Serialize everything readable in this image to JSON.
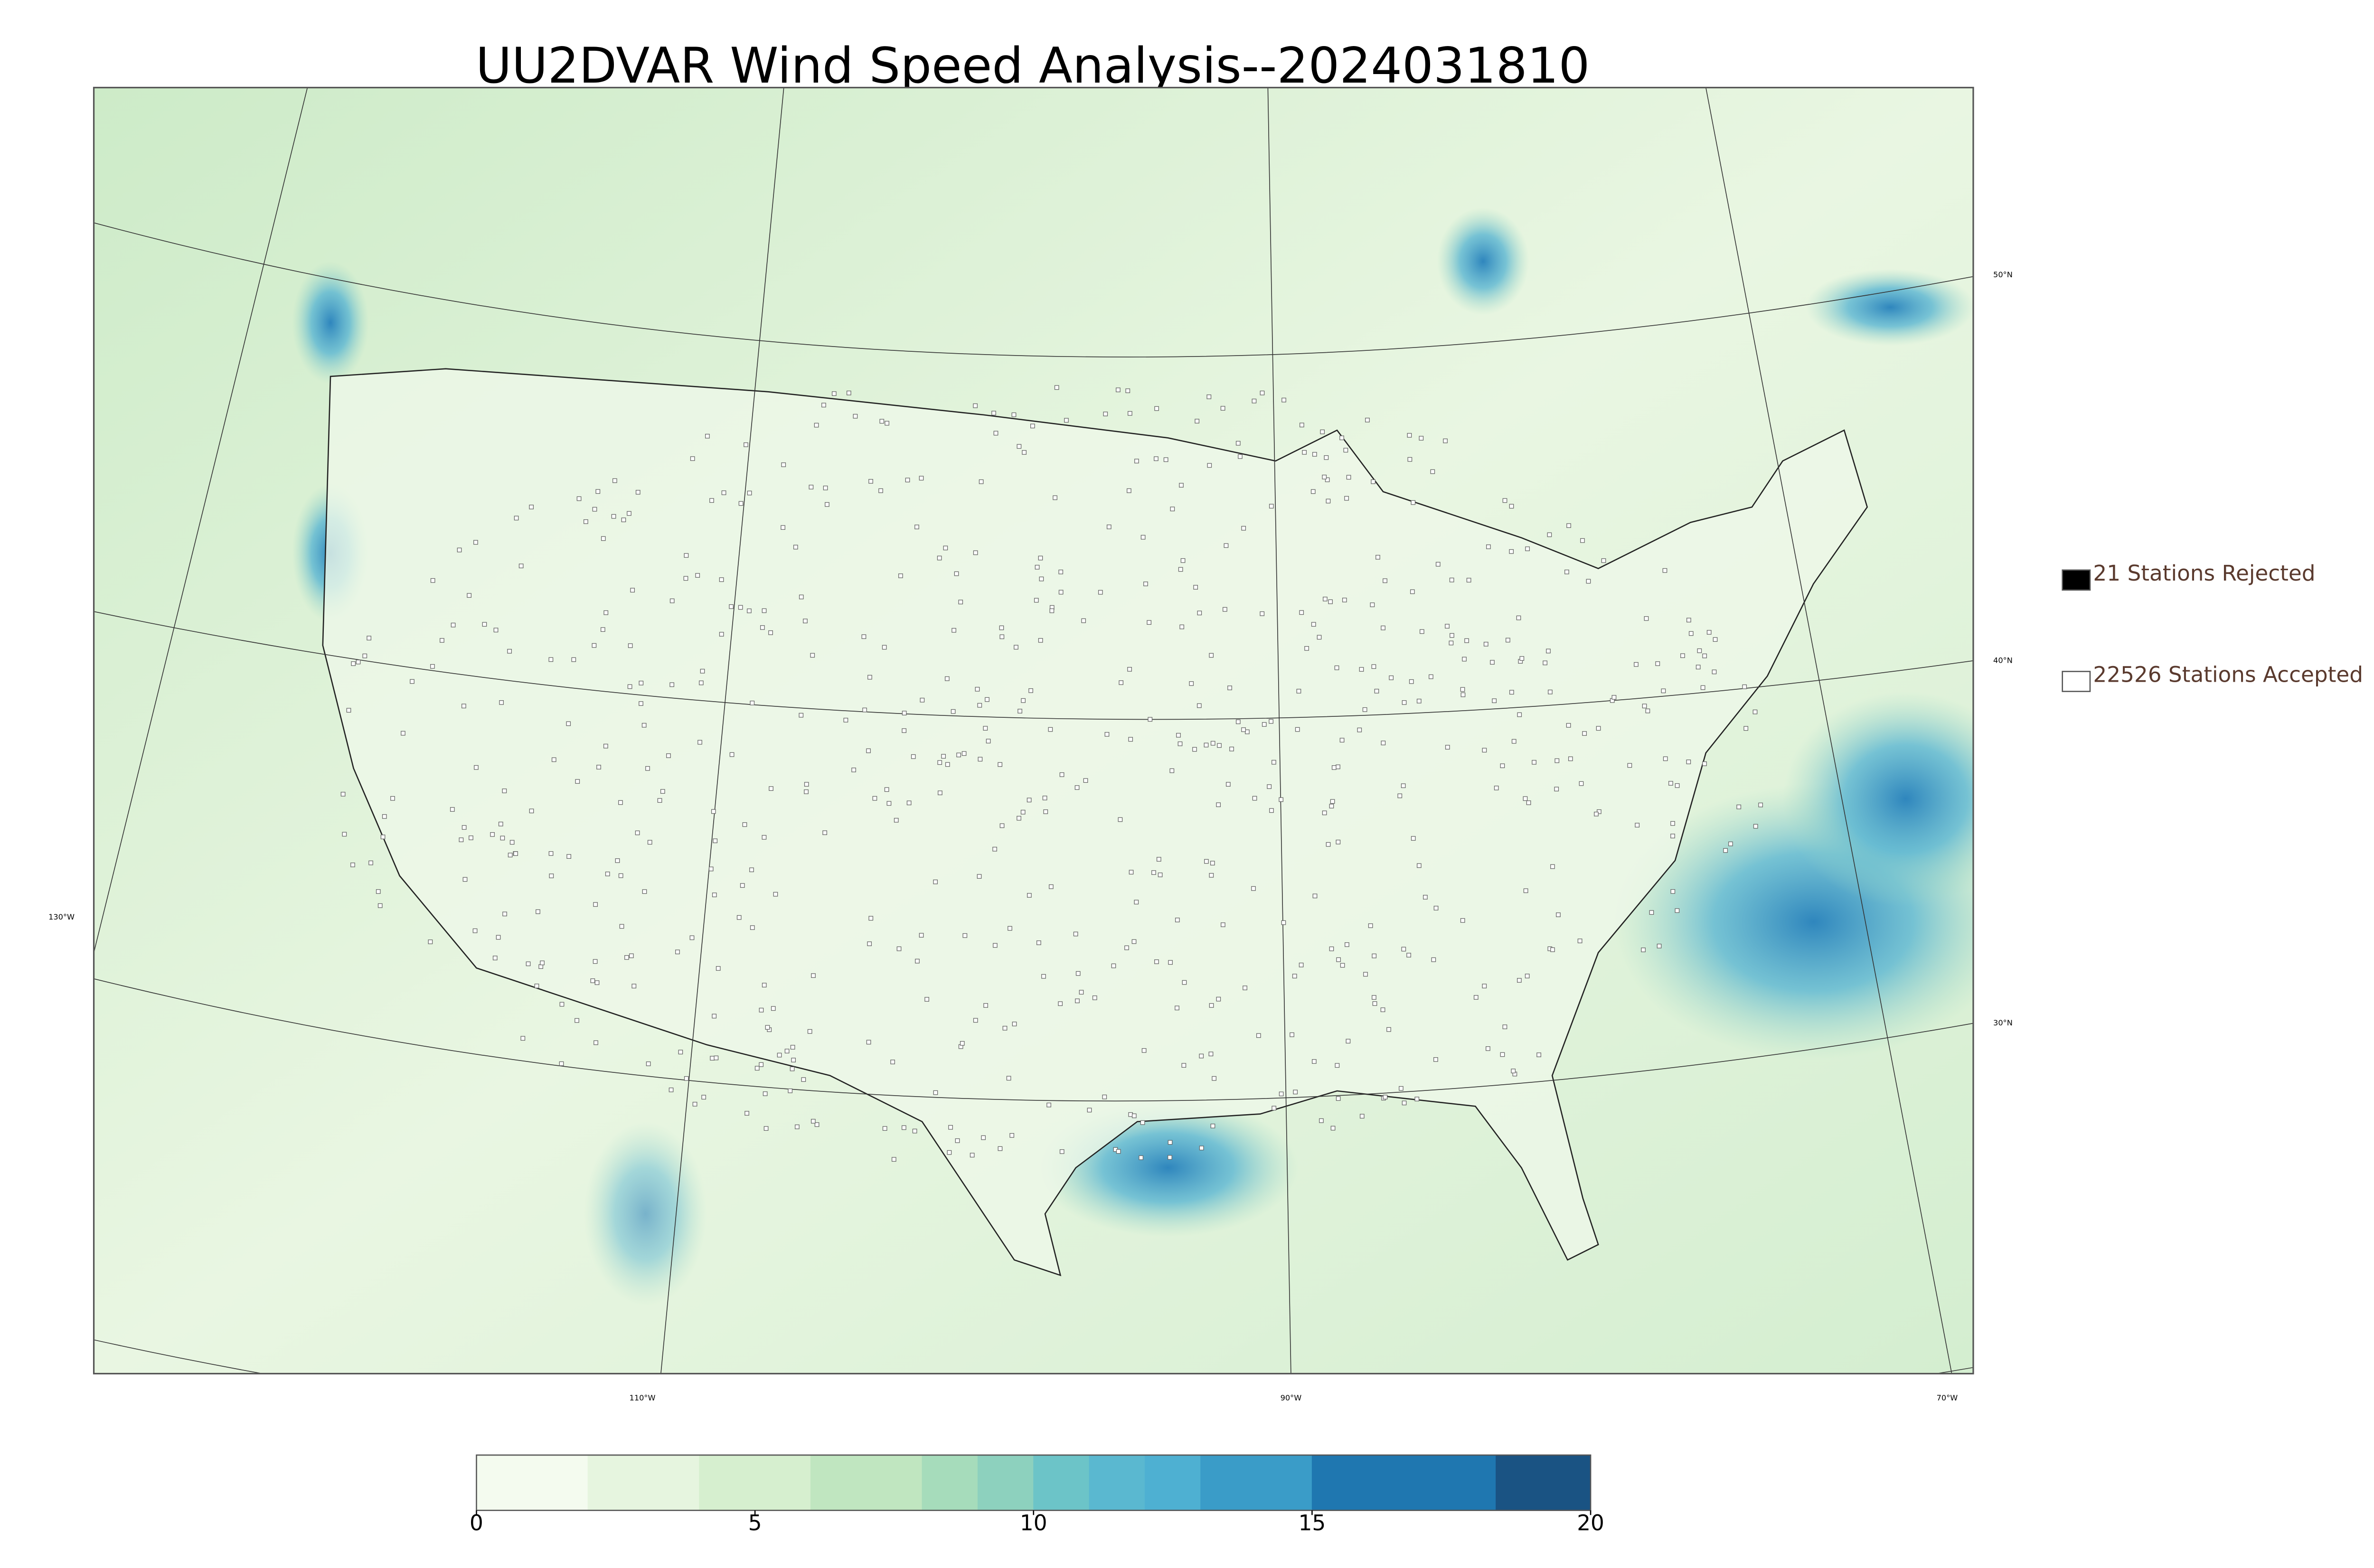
{
  "title": "UU2DVAR Wind Speed Analysis--2024031810",
  "legend": {
    "items": [
      {
        "label": "21 Stations Rejected",
        "color": "#000000"
      },
      {
        "label": "22526 Stations Accepted",
        "color": "#ffffff"
      }
    ]
  },
  "map": {
    "lat_labels": [
      "50°N",
      "40°N",
      "30°N"
    ],
    "lon_labels": [
      "130°W",
      "110°W",
      "90°W",
      "70°W"
    ]
  },
  "colorbar": {
    "lim": [
      0,
      20
    ],
    "ticks": [
      0,
      5,
      10,
      15,
      20
    ],
    "levels": [
      0,
      2,
      4,
      6,
      8,
      9,
      10,
      11,
      12,
      13,
      15,
      18.3,
      20
    ],
    "colors": [
      "#f4fbef",
      "#e6f5df",
      "#d6efcf",
      "#c0e6c0",
      "#a6dcbb",
      "#8dd1be",
      "#6cc4c8",
      "#5ab8d0",
      "#4eb0d2",
      "#3a9cc8",
      "#1f77b0",
      "#1a5383"
    ]
  }
}
